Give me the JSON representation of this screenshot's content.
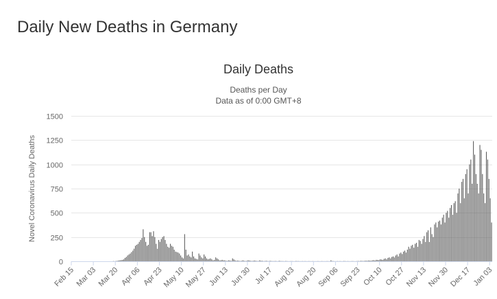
{
  "page": {
    "title": "Daily New Deaths in Germany"
  },
  "chart_data": {
    "type": "bar",
    "title": "Daily Deaths",
    "subtitle_lines": [
      "Deaths per Day",
      "Data as of 0:00 GMT+8"
    ],
    "ylabel": "Novel Coronavirus Daily Deaths",
    "xlabel": "",
    "ylim": [
      0,
      1500
    ],
    "y_ticks": [
      0,
      250,
      500,
      750,
      1000,
      1250,
      1500
    ],
    "x_tick_labels": [
      "Feb 15",
      "Mar 03",
      "Mar 20",
      "Apr 06",
      "Apr 23",
      "May 10",
      "May 27",
      "Jun 13",
      "Jun 30",
      "Jul 17",
      "Aug 03",
      "Aug 20",
      "Sep 06",
      "Sep 23",
      "Oct 10",
      "Oct 27",
      "Nov 13",
      "Nov 30",
      "Dec 17",
      "Jan 03"
    ],
    "x_tick_step_days": 17,
    "grid": true,
    "series": [
      {
        "name": "Daily Deaths",
        "start_date": "Feb 15",
        "values": [
          0,
          0,
          0,
          0,
          0,
          0,
          0,
          0,
          0,
          0,
          0,
          0,
          0,
          0,
          0,
          0,
          0,
          0,
          0,
          0,
          0,
          0,
          0,
          0,
          0,
          0,
          0,
          0,
          0,
          0,
          0,
          0,
          2,
          1,
          3,
          4,
          8,
          10,
          12,
          15,
          20,
          35,
          45,
          60,
          70,
          80,
          95,
          110,
          130,
          160,
          170,
          180,
          200,
          220,
          240,
          330,
          250,
          200,
          160,
          170,
          300,
          300,
          260,
          310,
          250,
          180,
          130,
          220,
          200,
          230,
          250,
          260,
          220,
          180,
          150,
          140,
          180,
          160,
          150,
          120,
          100,
          95,
          90,
          80,
          60,
          40,
          30,
          280,
          120,
          60,
          70,
          50,
          40,
          100,
          50,
          30,
          25,
          20,
          80,
          60,
          40,
          30,
          70,
          50,
          30,
          20,
          25,
          30,
          20,
          10,
          15,
          40,
          30,
          20,
          10,
          10,
          15,
          10,
          10,
          5,
          5,
          10,
          8,
          5,
          30,
          20,
          10,
          5,
          8,
          5,
          3,
          5,
          10,
          5,
          3,
          5,
          10,
          8,
          5,
          3,
          5,
          8,
          5,
          3,
          3,
          10,
          5,
          5,
          2,
          3,
          5,
          3,
          2,
          5,
          3,
          2,
          2,
          3,
          2,
          1,
          5,
          3,
          2,
          2,
          1,
          3,
          2,
          1,
          1,
          2,
          2,
          1,
          1,
          3,
          2,
          2,
          1,
          1,
          2,
          1,
          2,
          1,
          1,
          2,
          1,
          1,
          2,
          1,
          1,
          1,
          2,
          1,
          1,
          2,
          1,
          1,
          1,
          2,
          1,
          1,
          10,
          3,
          2,
          1,
          1,
          2,
          1,
          2,
          1,
          1,
          3,
          2,
          1,
          2,
          1,
          1,
          2,
          2,
          1,
          1,
          2,
          3,
          2,
          5,
          4,
          3,
          5,
          6,
          5,
          8,
          7,
          6,
          10,
          12,
          8,
          15,
          14,
          12,
          20,
          18,
          15,
          25,
          30,
          20,
          35,
          40,
          30,
          45,
          50,
          40,
          60,
          70,
          50,
          80,
          90,
          75,
          100,
          110,
          90,
          120,
          150,
          130,
          160,
          170,
          140,
          180,
          190,
          150,
          220,
          210,
          180,
          230,
          260,
          200,
          300,
          320,
          200,
          350,
          280,
          250,
          380,
          400,
          350,
          410,
          420,
          380,
          450,
          480,
          400,
          500,
          520,
          450,
          550,
          580,
          480,
          600,
          620,
          500,
          700,
          750,
          600,
          820,
          850,
          650,
          900,
          950,
          700,
          1000,
          1050,
          800,
          1240,
          1100,
          900,
          800,
          700,
          1200,
          1150,
          900,
          700,
          600,
          1130,
          1050,
          850,
          650,
          400
        ]
      }
    ]
  }
}
